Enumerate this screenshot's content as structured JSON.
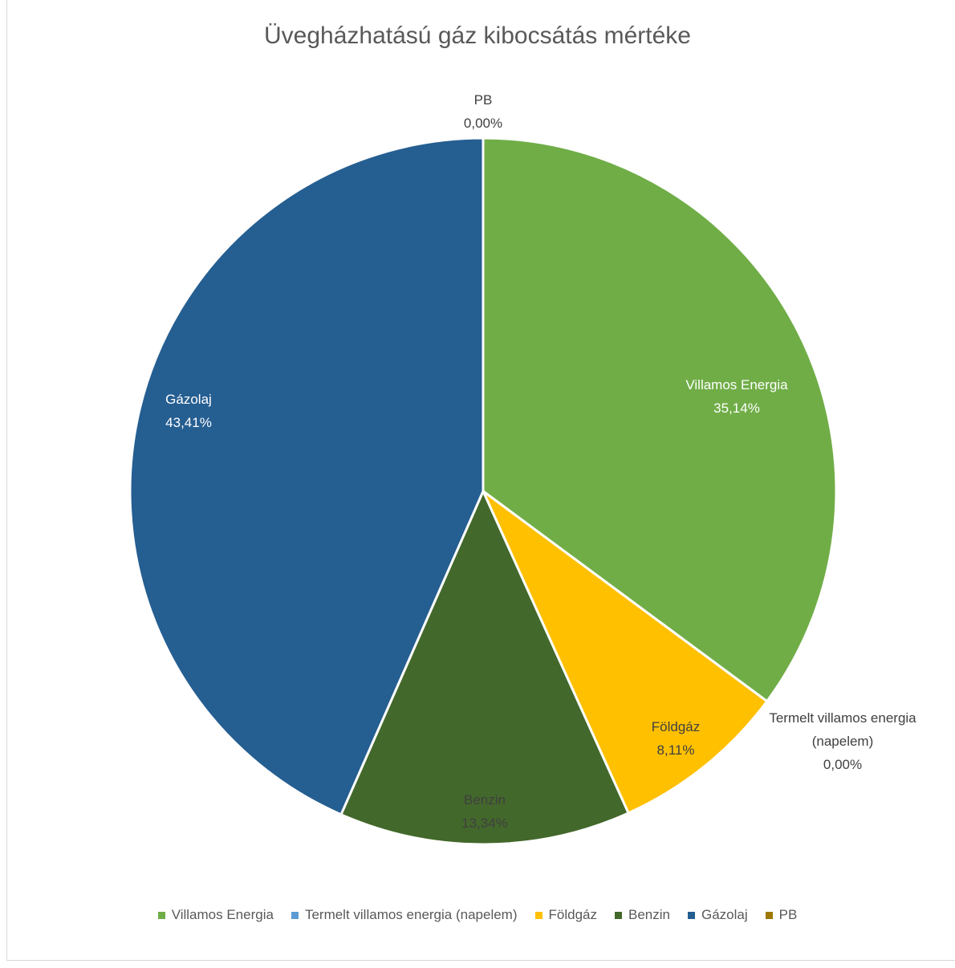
{
  "chart_data": {
    "type": "pie",
    "title": "Üvegházhatású gáz kibocsátás mértéke",
    "categories": [
      "Villamos Energia",
      "Termelt villamos energia (napelem)",
      "Földgáz",
      "Benzin",
      "Gázolaj",
      "PB"
    ],
    "values": [
      35.14,
      0.0,
      8.11,
      13.34,
      43.41,
      0.0
    ],
    "value_labels": [
      "35,14%",
      "0,00%",
      "8,11%",
      "13,34%",
      "43,41%",
      "0,00%"
    ],
    "colors": [
      "#70ad47",
      "#5b9bd5",
      "#ffc000",
      "#43682b",
      "#255e91",
      "#9e7800"
    ],
    "legend": "bottom"
  }
}
